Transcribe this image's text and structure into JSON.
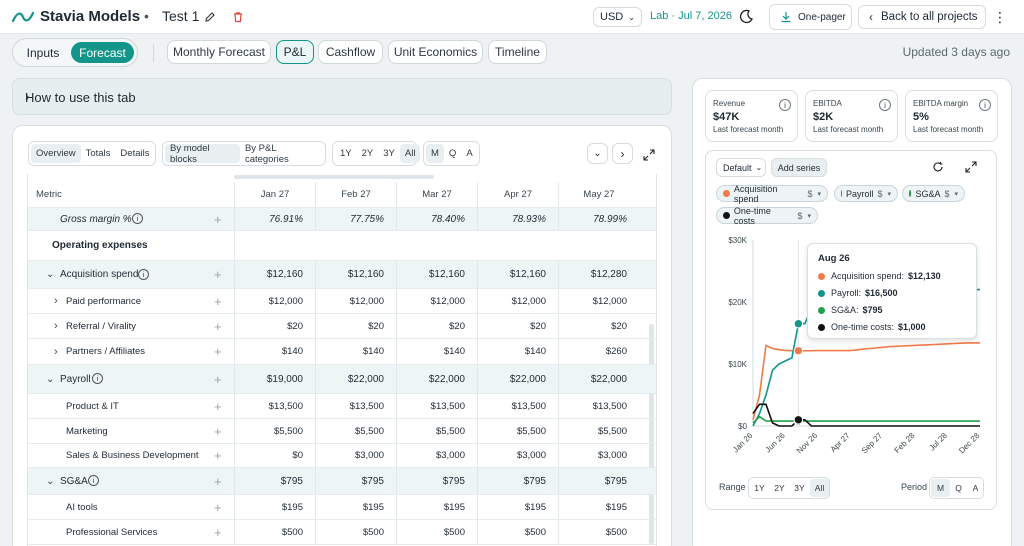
{
  "app": {
    "name": "Stavia Models",
    "project": "Test 1"
  },
  "header": {
    "currency": "USD",
    "lab_label": "Lab · Jul 7, 2026",
    "onepager_label": "One-pager",
    "back_label": "Back to all projects"
  },
  "modes": [
    {
      "label": "Inputs"
    },
    {
      "label": "Forecast"
    }
  ],
  "tabs": [
    {
      "label": "Monthly Forecast"
    },
    {
      "label": "P&L"
    },
    {
      "label": "Cashflow"
    },
    {
      "label": "Unit Economics"
    },
    {
      "label": "Timeline"
    }
  ],
  "updated": "Updated 3 days ago",
  "howto": "How to use this tab",
  "controls": {
    "view": [
      "Overview",
      "Totals",
      "Details"
    ],
    "grouping": [
      "By model blocks",
      "By P&L categories"
    ],
    "range": [
      "1Y",
      "2Y",
      "3Y",
      "All"
    ],
    "period": [
      "M",
      "Q",
      "A"
    ]
  },
  "table": {
    "metric_header": "Metric",
    "columns": [
      "Jan 27",
      "Feb 27",
      "Mar 27",
      "Apr 27",
      "May 27"
    ],
    "rows": [
      {
        "label": "Gross margin %",
        "values": [
          "76.91%",
          "77.75%",
          "78.40%",
          "78.93%",
          "78.99%"
        ]
      },
      {
        "label": "Operating expenses",
        "values": [
          "",
          "",
          "",
          "",
          ""
        ]
      },
      {
        "label": "Acquisition spend",
        "values": [
          "$12,160",
          "$12,160",
          "$12,160",
          "$12,160",
          "$12,280"
        ]
      },
      {
        "label": "Paid performance",
        "values": [
          "$12,000",
          "$12,000",
          "$12,000",
          "$12,000",
          "$12,000"
        ]
      },
      {
        "label": "Referral / Virality",
        "values": [
          "$20",
          "$20",
          "$20",
          "$20",
          "$20"
        ]
      },
      {
        "label": "Partners / Affiliates",
        "values": [
          "$140",
          "$140",
          "$140",
          "$140",
          "$260"
        ]
      },
      {
        "label": "Payroll",
        "values": [
          "$19,000",
          "$22,000",
          "$22,000",
          "$22,000",
          "$22,000"
        ]
      },
      {
        "label": "Product & IT",
        "values": [
          "$13,500",
          "$13,500",
          "$13,500",
          "$13,500",
          "$13,500"
        ]
      },
      {
        "label": "Marketing",
        "values": [
          "$5,500",
          "$5,500",
          "$5,500",
          "$5,500",
          "$5,500"
        ]
      },
      {
        "label": "Sales & Business Development",
        "values": [
          "$0",
          "$3,000",
          "$3,000",
          "$3,000",
          "$3,000"
        ]
      },
      {
        "label": "SG&A",
        "values": [
          "$795",
          "$795",
          "$795",
          "$795",
          "$795"
        ]
      },
      {
        "label": "AI tools",
        "values": [
          "$195",
          "$195",
          "$195",
          "$195",
          "$195"
        ]
      },
      {
        "label": "Professional Services",
        "values": [
          "$500",
          "$500",
          "$500",
          "$500",
          "$500"
        ]
      }
    ]
  },
  "kpis": [
    {
      "title": "Revenue",
      "value": "$47K",
      "sub": "Last forecast month"
    },
    {
      "title": "EBITDA",
      "value": "$2K",
      "sub": "Last forecast month"
    },
    {
      "title": "EBITDA margin",
      "value": "5%",
      "sub": "Last forecast month"
    }
  ],
  "chart_panel": {
    "preset": "Default",
    "add_series": "Add series",
    "range_label": "Range",
    "period_label": "Period",
    "chips": [
      {
        "label": "Acquisition spend",
        "unit": "$",
        "color": "#f07a4a"
      },
      {
        "label": "Payroll",
        "unit": "$",
        "color": "#13958a"
      },
      {
        "label": "SG&A",
        "unit": "$",
        "color": "#22a04b"
      },
      {
        "label": "One-time costs",
        "unit": "$",
        "color": "#111111"
      }
    ],
    "tooltip": {
      "title": "Aug 26",
      "lines": [
        {
          "label": "Acquisition spend:",
          "value": "$12,130"
        },
        {
          "label": "Payroll:",
          "value": "$16,500"
        },
        {
          "label": "SG&A:",
          "value": "$795"
        },
        {
          "label": "One-time costs:",
          "value": "$1,000"
        }
      ]
    }
  },
  "chart_data": {
    "type": "line",
    "title": "",
    "xlabel": "",
    "ylabel": "",
    "y_ticks": [
      "$0",
      "$10K",
      "$20K",
      "$30K"
    ],
    "ylim": [
      0,
      30000
    ],
    "x": [
      "Jan 26",
      "Feb 26",
      "Mar 26",
      "Apr 26",
      "May 26",
      "Jun 26",
      "Jul 26",
      "Aug 26",
      "Sep 26",
      "Oct 26",
      "Nov 26",
      "Dec 26",
      "Jan 27",
      "Feb 27",
      "Mar 27",
      "Apr 27",
      "May 27",
      "Jun 27",
      "Jul 27",
      "Aug 27",
      "Sep 27",
      "Oct 27",
      "Nov 27",
      "Dec 27",
      "Jan 28",
      "Feb 28",
      "Mar 28",
      "Apr 28",
      "May 28",
      "Jun 28",
      "Jul 28",
      "Aug 28",
      "Sep 28",
      "Oct 28",
      "Nov 28",
      "Dec 28"
    ],
    "x_ticks": [
      "Jan 26",
      "Jun 26",
      "Nov 26",
      "Apr 27",
      "Sep 27",
      "Feb 28",
      "Jul 28",
      "Dec 28"
    ],
    "series": [
      {
        "name": "Acquisition spend",
        "color": "#f07a4a",
        "values": [
          1000,
          5000,
          13000,
          12500,
          12300,
          12200,
          12150,
          12130,
          12130,
          12150,
          12160,
          12160,
          12160,
          12160,
          12160,
          12160,
          12280,
          12400,
          12500,
          12600,
          12700,
          12800,
          12850,
          12900,
          12950,
          13000,
          13050,
          13100,
          13150,
          13200,
          13250,
          13300,
          13350,
          13400,
          13400,
          13400
        ]
      },
      {
        "name": "Payroll",
        "color": "#13958a",
        "values": [
          0,
          2000,
          5000,
          9000,
          10000,
          10500,
          11000,
          16500,
          16500,
          19000,
          19000,
          19000,
          19000,
          22000,
          22000,
          22000,
          22000,
          22000,
          22000,
          22000,
          22000,
          22000,
          22000,
          22000,
          22000,
          22000,
          22000,
          22000,
          22000,
          22000,
          22000,
          22000,
          22000,
          22000,
          22000,
          22000
        ]
      },
      {
        "name": "SG&A",
        "color": "#22a04b",
        "values": [
          500,
          1500,
          800,
          795,
          795,
          795,
          795,
          795,
          795,
          795,
          795,
          795,
          795,
          795,
          795,
          795,
          795,
          795,
          795,
          795,
          795,
          795,
          795,
          795,
          795,
          795,
          795,
          795,
          795,
          795,
          795,
          795,
          795,
          795,
          795,
          795
        ]
      },
      {
        "name": "One-time costs",
        "color": "#111111",
        "values": [
          2000,
          3500,
          3500,
          500,
          0,
          0,
          0,
          1000,
          1000,
          0,
          0,
          0,
          0,
          0,
          0,
          0,
          0,
          0,
          0,
          0,
          0,
          0,
          0,
          0,
          0,
          0,
          0,
          0,
          0,
          0,
          0,
          0,
          0,
          0,
          0,
          0
        ]
      }
    ],
    "grid": false,
    "legend": "top"
  }
}
